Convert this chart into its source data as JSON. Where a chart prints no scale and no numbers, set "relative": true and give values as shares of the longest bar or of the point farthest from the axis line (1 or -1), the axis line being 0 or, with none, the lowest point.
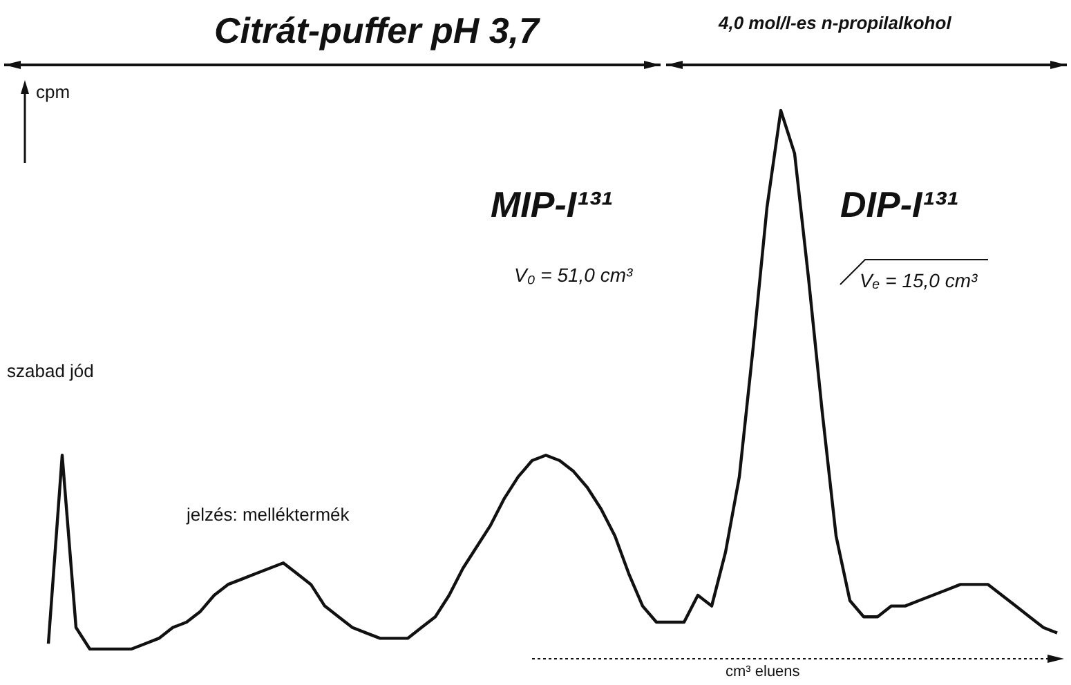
{
  "chart_data": {
    "type": "line",
    "title": "Citrát-puffer pH 3,7",
    "xlabel": "cm³ eluens",
    "ylabel": "cpm",
    "relative": true,
    "marker": "none",
    "grid": false,
    "annotations": [
      "4,0 mol/l-es n-propilalkohol",
      "szabad jód",
      "jelzés: melléktermék",
      "MIP-I¹³¹",
      "V₀ = 51,0 cm³",
      "DIP-I¹³¹",
      "Vₑ = 15,0 cm³"
    ],
    "categories": [
      null,
      null,
      null,
      null,
      null,
      null,
      null,
      null,
      null,
      null,
      null,
      null,
      null,
      null,
      null,
      null,
      null,
      null,
      null,
      null,
      null,
      null,
      null,
      null,
      null,
      null,
      null,
      null,
      null,
      null,
      null,
      null,
      null,
      null,
      null,
      null,
      null,
      null,
      null,
      null,
      null,
      null,
      null,
      null,
      null,
      null,
      null,
      null,
      null,
      null,
      null,
      null,
      null,
      null,
      null,
      null,
      null,
      null,
      null,
      null,
      null,
      null,
      null,
      null,
      null,
      null,
      null,
      null,
      null,
      null,
      null,
      null,
      null,
      null
    ],
    "series": [
      {
        "color": "#111111",
        "values": [
          0.01,
          0.36,
          0.04,
          0,
          0,
          0,
          0,
          0.01,
          0.02,
          0.04,
          0.05,
          0.07,
          0.1,
          0.12,
          0.13,
          0.14,
          0.15,
          0.16,
          0.14,
          0.12,
          0.08,
          0.06,
          0.04,
          0.03,
          0.02,
          0.02,
          0.02,
          0.04,
          0.06,
          0.1,
          0.15,
          0.19,
          0.23,
          0.28,
          0.32,
          0.35,
          0.36,
          0.35,
          0.33,
          0.3,
          0.26,
          0.21,
          0.14,
          0.08,
          0.05,
          0.05,
          0.05,
          0.1,
          0.08,
          0.18,
          0.32,
          0.56,
          0.82,
          1,
          0.92,
          0.69,
          0.44,
          0.21,
          0.09,
          0.06,
          0.06,
          0.08,
          0.08,
          0.09,
          0.1,
          0.11,
          0.12,
          0.12,
          0.12,
          0.1,
          0.08,
          0.06,
          0.04,
          0.03
        ]
      }
    ]
  }
}
